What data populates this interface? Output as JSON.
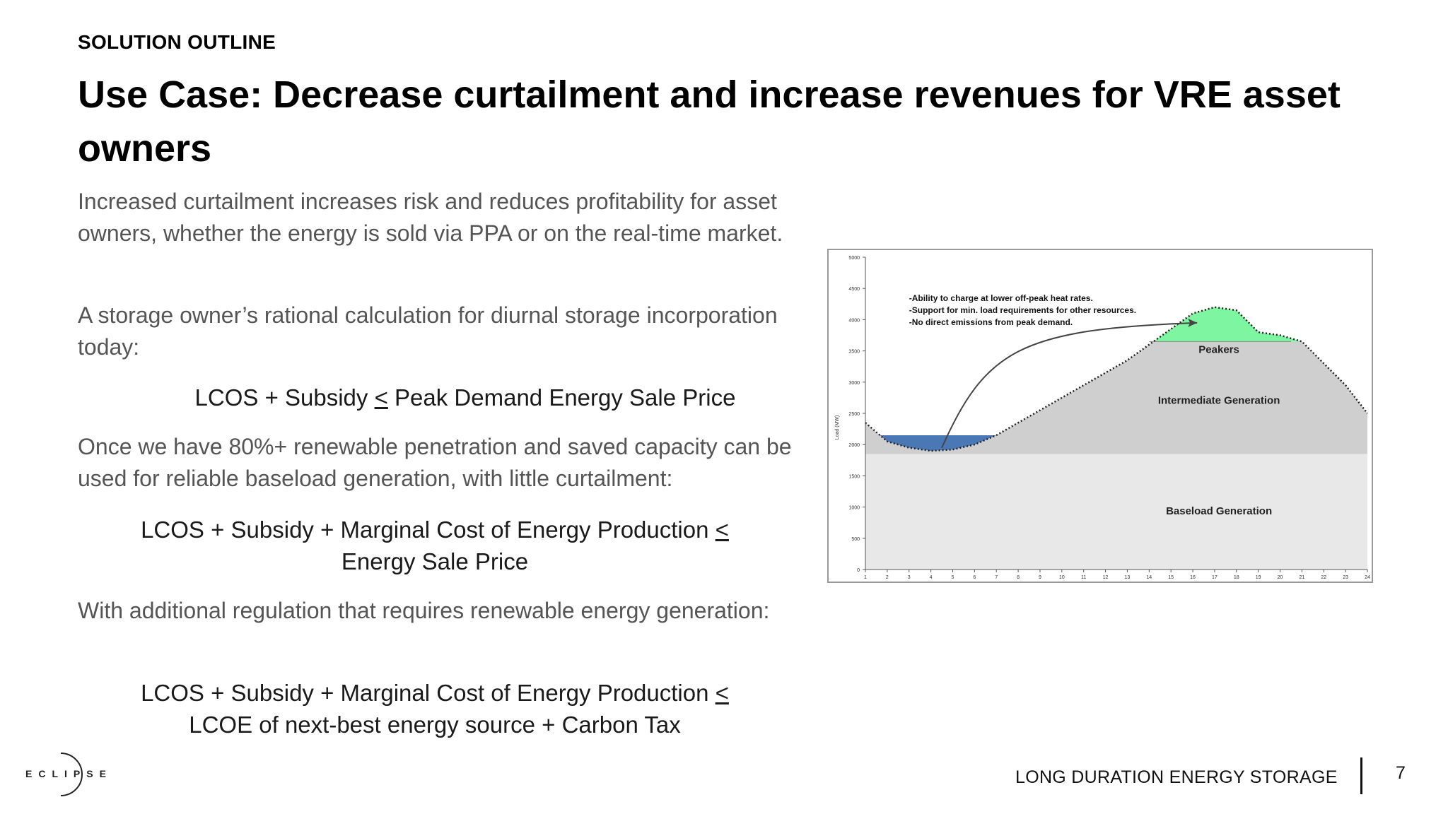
{
  "header": {
    "section_label": "SOLUTION OUTLINE",
    "title": "Use Case: Decrease curtailment and increase revenues for VRE asset owners"
  },
  "body": {
    "para1": "Increased curtailment increases risk and reduces profitability for asset owners, whether the energy is sold via PPA or on the real-time market.",
    "para2": "A storage owner’s rational calculation for diurnal storage incorporation today:",
    "formula1": {
      "text": "LCOS + Subsidy ",
      "op": "<",
      "rest": " Peak Demand Energy Sale Price"
    },
    "para3": "Once we have 80%+ renewable penetration and saved capacity can be used for  reliable baseload generation, with little curtailment:",
    "formula2": {
      "line1": "LCOS + Subsidy + Marginal Cost of Energy Production  ",
      "op": "<",
      "line2": "Energy Sale Price"
    },
    "para4": "With additional regulation that requires renewable energy generation:",
    "formula3": {
      "line1": "LCOS + Subsidy + Marginal Cost of Energy Production ",
      "op": "<",
      "line2": "LCOE of next-best energy source + Carbon Tax"
    }
  },
  "chart_data": {
    "type": "area",
    "ylabel": "Load (MW)",
    "ylim": [
      0,
      5000
    ],
    "xlim": [
      1,
      24
    ],
    "x_ticks": [
      "1",
      "2",
      "3",
      "4",
      "5",
      "6",
      "7",
      "8",
      "9",
      "10",
      "11",
      "12",
      "13",
      "14",
      "15",
      "16",
      "17",
      "18",
      "19",
      "20",
      "21",
      "22",
      "23",
      "24"
    ],
    "y_ticks": [
      "0",
      "500",
      "1000",
      "1500",
      "2000",
      "2500",
      "3000",
      "3500",
      "4000",
      "4500",
      "5000"
    ],
    "annotations": [
      "-Ability to charge at lower off-peak heat rates.",
      "-Support for min. load requirements for other resources.",
      "-No direct emissions from peak demand."
    ],
    "regions": [
      "Peakers",
      "Intermediate Generation",
      "Baseload Generation"
    ],
    "baseload_level": 1850,
    "peakers_threshold": 3650,
    "load_curve": {
      "x": [
        1,
        2,
        3,
        4,
        5,
        6,
        7,
        8,
        9,
        10,
        11,
        12,
        13,
        14,
        15,
        16,
        17,
        18,
        19,
        20,
        21,
        22,
        23,
        24
      ],
      "y": [
        2350,
        2050,
        1950,
        1900,
        1920,
        2000,
        2150,
        2350,
        2550,
        2750,
        2950,
        3150,
        3350,
        3600,
        3850,
        4100,
        4200,
        4150,
        3800,
        3750,
        3650,
        3300,
        2950,
        2500
      ]
    },
    "colors": {
      "peakers": "#7ef5a0",
      "storage": "#4a78b5",
      "intermediate": "#cfcfcf",
      "baseload": "#e8e8e8"
    }
  },
  "footer": {
    "deck_title": "LONG DURATION ENERGY STORAGE",
    "page_number": "7",
    "logo_text": "ECLIPSE"
  }
}
